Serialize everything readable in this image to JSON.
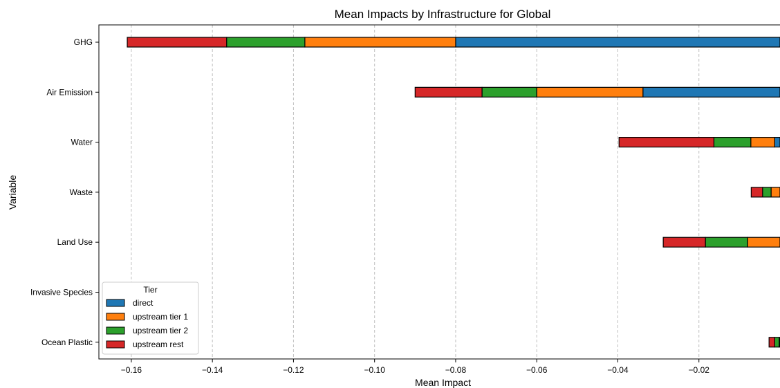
{
  "chart_data": {
    "type": "bar",
    "orientation": "horizontal",
    "stacked": true,
    "title": "Mean Impacts by Infrastructure for Global",
    "xlabel": "Mean Impact",
    "ylabel": "Variable",
    "xlim": [
      -0.168,
      0.0
    ],
    "x_ticks": [
      -0.16,
      -0.14,
      -0.12,
      -0.1,
      -0.08,
      -0.06,
      -0.04,
      -0.02
    ],
    "x_tick_labels": [
      "−0.16",
      "−0.14",
      "−0.12",
      "−0.10",
      "−0.08",
      "−0.06",
      "−0.04",
      "−0.02"
    ],
    "grid": "x-dashed",
    "categories": [
      "GHG",
      "Air Emission",
      "Water",
      "Waste",
      "Land Use",
      "Invasive Species",
      "Ocean Plastic"
    ],
    "series": [
      {
        "name": "direct",
        "color": "#1f77b4",
        "values": [
          -0.08,
          -0.0338,
          -0.0013,
          0.0,
          0.0,
          0.0,
          0.0
        ]
      },
      {
        "name": "upstream tier 1",
        "color": "#ff7f0e",
        "values": [
          -0.0372,
          -0.0262,
          -0.0059,
          -0.0022,
          -0.008,
          0.0,
          -0.0002
        ]
      },
      {
        "name": "upstream tier 2",
        "color": "#2ca02c",
        "values": [
          -0.0193,
          -0.0135,
          -0.0091,
          -0.0021,
          -0.0104,
          0.0,
          -0.0011
        ]
      },
      {
        "name": "upstream rest",
        "color": "#d62728",
        "values": [
          -0.0245,
          -0.0165,
          -0.0234,
          -0.0028,
          -0.0104,
          0.0,
          -0.0014
        ]
      }
    ],
    "legend": {
      "title": "Tier",
      "placement": "lower-left"
    }
  }
}
